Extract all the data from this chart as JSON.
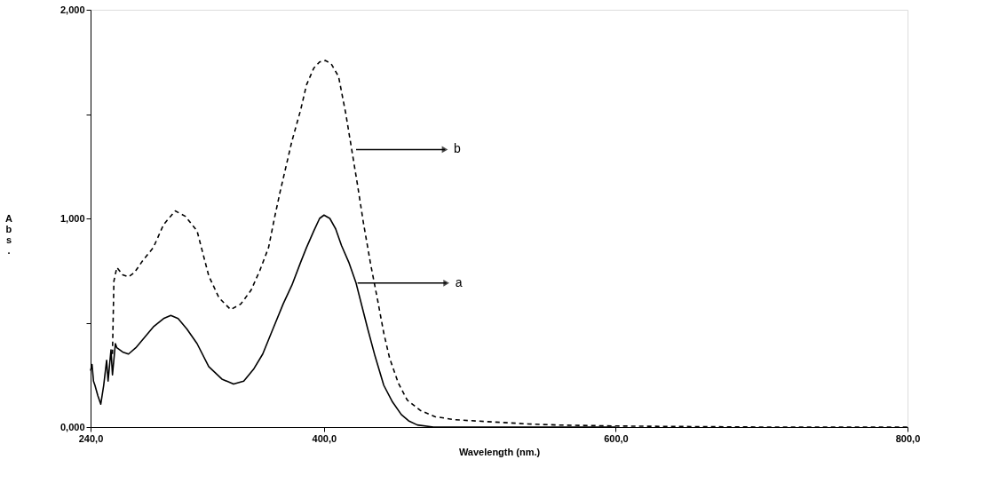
{
  "chart_data": {
    "type": "line",
    "xlabel": "Wavelength (nm.)",
    "ylabel": "Abs.",
    "xlim": [
      240,
      800
    ],
    "xticks": [
      {
        "value": 240,
        "label": "240,0"
      },
      {
        "value": 400,
        "label": "400,0"
      },
      {
        "value": 600,
        "label": "600,0"
      },
      {
        "value": 800,
        "label": "800,0"
      }
    ],
    "ylim": [
      0,
      2
    ],
    "yticks": [
      {
        "value": 0,
        "label": "0,000"
      },
      {
        "value": 0.5,
        "label": null
      },
      {
        "value": 1,
        "label": "1,000"
      },
      {
        "value": 1.5,
        "label": null
      },
      {
        "value": 2,
        "label": "2,000"
      }
    ],
    "grid": false,
    "series": [
      {
        "color": "#000000",
        "line_style": "solid",
        "x": [
          240,
          241,
          242,
          243,
          245,
          247,
          249,
          251,
          252,
          254,
          255,
          257,
          258,
          262,
          266,
          271,
          277,
          283,
          290,
          295,
          300,
          306,
          313,
          321,
          330,
          338,
          345,
          352,
          358,
          365,
          372,
          378,
          384,
          388,
          393,
          397,
          400,
          404,
          408,
          412,
          417,
          422,
          426,
          430,
          435,
          441,
          447,
          453,
          458,
          464,
          475,
          500,
          550,
          600
        ],
        "values": [
          0.27,
          0.3,
          0.22,
          0.2,
          0.15,
          0.11,
          0.2,
          0.32,
          0.22,
          0.37,
          0.25,
          0.4,
          0.38,
          0.36,
          0.35,
          0.38,
          0.43,
          0.48,
          0.52,
          0.535,
          0.52,
          0.47,
          0.4,
          0.29,
          0.23,
          0.206,
          0.22,
          0.28,
          0.35,
          0.47,
          0.59,
          0.68,
          0.79,
          0.86,
          0.94,
          1.0,
          1.016,
          1.0,
          0.95,
          0.87,
          0.79,
          0.69,
          0.58,
          0.47,
          0.34,
          0.2,
          0.12,
          0.06,
          0.03,
          0.01,
          0.0,
          0.0,
          0.0,
          0.0
        ]
      },
      {
        "color": "#000000",
        "line_style": "dashed",
        "x": [
          255,
          256,
          258,
          262,
          266,
          270,
          276,
          283,
          290,
          298,
          305,
          313,
          321,
          328,
          336,
          343,
          350,
          356,
          362,
          366,
          370,
          378,
          384,
          388,
          393,
          397,
          401,
          405,
          410,
          415,
          419,
          423,
          427,
          432,
          437,
          441,
          445,
          451,
          457,
          466,
          476,
          490,
          515,
          540,
          560,
          600,
          700,
          800
        ],
        "values": [
          0.35,
          0.7,
          0.765,
          0.73,
          0.72,
          0.74,
          0.8,
          0.86,
          0.97,
          1.036,
          1.01,
          0.94,
          0.725,
          0.62,
          0.563,
          0.59,
          0.656,
          0.75,
          0.86,
          1.0,
          1.13,
          1.37,
          1.52,
          1.64,
          1.72,
          1.75,
          1.757,
          1.74,
          1.68,
          1.5,
          1.33,
          1.16,
          0.98,
          0.78,
          0.6,
          0.45,
          0.33,
          0.21,
          0.13,
          0.08,
          0.05,
          0.035,
          0.025,
          0.015,
          0.01,
          0.005,
          0.0,
          0.0
        ]
      }
    ],
    "annotations": [
      {
        "text": "b",
        "x": 422,
        "y": 1.33
      },
      {
        "text": "a",
        "x": 423,
        "y": 0.69
      }
    ]
  }
}
